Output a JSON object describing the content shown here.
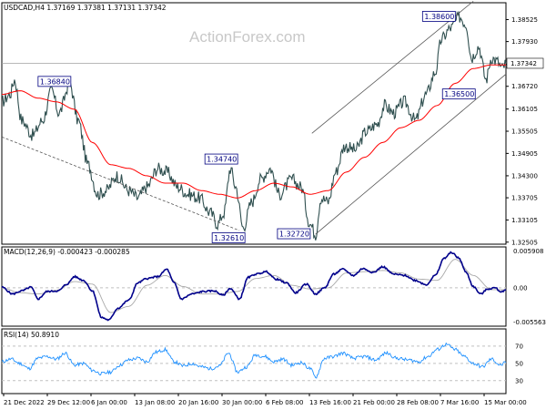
{
  "watermark": "ActionForex.com",
  "price_panel": {
    "title": "USDCAD,H4  1.37169 1.37381 1.37131 1.37342",
    "current_price": 1.37342,
    "current_price_label": "1.37342",
    "y_range": [
      1.3245,
      1.3898
    ],
    "y_ticks": [
      "1.38525",
      "1.37930",
      "1.37320",
      "1.36720",
      "1.36105",
      "1.35505",
      "1.34905",
      "1.34300",
      "1.33705",
      "1.33105",
      "1.32505"
    ],
    "annotations": [
      {
        "label": "1.36840",
        "value": 1.3684
      },
      {
        "label": "1.34740",
        "value": 1.3474
      },
      {
        "label": "1.32610",
        "value": 1.3261
      },
      {
        "label": "1.32720",
        "value": 1.3272
      },
      {
        "label": "1.38600",
        "value": 1.386
      },
      {
        "label": "1.36500",
        "value": 1.365
      }
    ]
  },
  "macd_panel": {
    "title": "MACD(12,26,9) -0.000423 -0.000285",
    "y_range": [
      -0.0062,
      0.0066
    ],
    "y_ticks": [
      "0.005908",
      "0.00",
      "-0.005563"
    ]
  },
  "rsi_panel": {
    "title": "RSI(14) 50.8910",
    "y_range": [
      15,
      90
    ],
    "y_ticks": [
      "70",
      "50",
      "30"
    ]
  },
  "x_ticks": [
    "21 Dec 2022",
    "29 Dec 12:00",
    "6 Jan 00:00",
    "13 Jan 08:00",
    "20 Jan 16:00",
    "30 Jan 00:00",
    "6 Feb 08:00",
    "13 Feb 16:00",
    "21 Feb 00:00",
    "28 Feb 08:00",
    "7 Mar 16:00",
    "15 Mar 00:00"
  ],
  "colors": {
    "price_line": "#2f4f4f",
    "moving_average": "#ff0000",
    "channel": "#555555",
    "macd_line": "#00008b",
    "signal_line": "#a9a9a9",
    "rsi_line": "#1e90ff",
    "annotation": "#000080"
  },
  "chart_data": {
    "type": "line",
    "series": [
      {
        "name": "USDCAD H4",
        "anchors": [
          [
            0,
            1.363
          ],
          [
            9,
            1.365
          ],
          [
            14,
            1.369
          ],
          [
            22,
            1.358
          ],
          [
            34,
            1.354
          ],
          [
            45,
            1.358
          ],
          [
            55,
            1.366
          ],
          [
            63,
            1.36
          ],
          [
            75,
            1.368
          ],
          [
            84,
            1.358
          ],
          [
            95,
            1.346
          ],
          [
            106,
            1.338
          ],
          [
            115,
            1.339
          ],
          [
            127,
            1.343
          ],
          [
            140,
            1.339
          ],
          [
            150,
            1.337
          ],
          [
            160,
            1.34
          ],
          [
            172,
            1.345
          ],
          [
            182,
            1.344
          ],
          [
            194,
            1.34
          ],
          [
            206,
            1.338
          ],
          [
            218,
            1.337
          ],
          [
            230,
            1.333
          ],
          [
            238,
            1.33
          ],
          [
            245,
            1.333
          ],
          [
            252,
            1.345
          ],
          [
            258,
            1.34
          ],
          [
            266,
            1.329
          ],
          [
            276,
            1.336
          ],
          [
            285,
            1.342
          ],
          [
            296,
            1.345
          ],
          [
            306,
            1.338
          ],
          [
            320,
            1.342
          ],
          [
            330,
            1.34
          ],
          [
            340,
            1.33
          ],
          [
            346,
            1.3272
          ],
          [
            352,
            1.337
          ],
          [
            360,
            1.336
          ],
          [
            368,
            1.344
          ],
          [
            378,
            1.351
          ],
          [
            390,
            1.35
          ],
          [
            402,
            1.355
          ],
          [
            414,
            1.357
          ],
          [
            422,
            1.362
          ],
          [
            432,
            1.36
          ],
          [
            444,
            1.363
          ],
          [
            456,
            1.358
          ],
          [
            468,
            1.365
          ],
          [
            478,
            1.371
          ],
          [
            485,
            1.38
          ],
          [
            495,
            1.383
          ],
          [
            505,
            1.386
          ],
          [
            512,
            1.384
          ],
          [
            518,
            1.375
          ],
          [
            526,
            1.378
          ],
          [
            534,
            1.369
          ],
          [
            540,
            1.375
          ],
          [
            546,
            1.374
          ],
          [
            552,
            1.372
          ],
          [
            556,
            1.3734
          ]
        ]
      },
      {
        "name": "MA",
        "anchors": [
          [
            0,
            1.365
          ],
          [
            20,
            1.366
          ],
          [
            40,
            1.364
          ],
          [
            60,
            1.363
          ],
          [
            80,
            1.361
          ],
          [
            100,
            1.352
          ],
          [
            120,
            1.346
          ],
          [
            140,
            1.345
          ],
          [
            160,
            1.343
          ],
          [
            180,
            1.341
          ],
          [
            200,
            1.341
          ],
          [
            220,
            1.339
          ],
          [
            240,
            1.338
          ],
          [
            260,
            1.337
          ],
          [
            280,
            1.339
          ],
          [
            300,
            1.341
          ],
          [
            320,
            1.34
          ],
          [
            340,
            1.338
          ],
          [
            360,
            1.339
          ],
          [
            380,
            1.344
          ],
          [
            400,
            1.348
          ],
          [
            420,
            1.352
          ],
          [
            440,
            1.356
          ],
          [
            460,
            1.358
          ],
          [
            480,
            1.362
          ],
          [
            500,
            1.368
          ],
          [
            520,
            1.372
          ],
          [
            540,
            1.373
          ],
          [
            556,
            1.373
          ]
        ]
      },
      {
        "name": "MACD(12,26,9)",
        "anchors": [
          [
            0,
            0.0001
          ],
          [
            12,
            -0.001
          ],
          [
            22,
            -0.0005
          ],
          [
            32,
            0.0001
          ],
          [
            40,
            -0.0018
          ],
          [
            50,
            -0.0006
          ],
          [
            62,
            -0.0005
          ],
          [
            72,
            0.0006
          ],
          [
            80,
            0.0018
          ],
          [
            90,
            0.0012
          ],
          [
            100,
            -0.0005
          ],
          [
            110,
            -0.0048
          ],
          [
            118,
            -0.0052
          ],
          [
            128,
            -0.0033
          ],
          [
            140,
            -0.002
          ],
          [
            150,
            0.0008
          ],
          [
            160,
            0.0015
          ],
          [
            172,
            0.0018
          ],
          [
            182,
            0.003
          ],
          [
            190,
            0.0008
          ],
          [
            198,
            -0.0018
          ],
          [
            210,
            -0.001
          ],
          [
            222,
            -0.0006
          ],
          [
            234,
            -0.0005
          ],
          [
            244,
            -0.0012
          ],
          [
            252,
            -0.0001
          ],
          [
            262,
            -0.0018
          ],
          [
            272,
            0.0017
          ],
          [
            280,
            0.0022
          ],
          [
            292,
            0.0026
          ],
          [
            302,
            0.0014
          ],
          [
            314,
            0.0008
          ],
          [
            324,
            -0.0008
          ],
          [
            336,
            0.0006
          ],
          [
            346,
            -0.001
          ],
          [
            356,
            0.0
          ],
          [
            366,
            0.0022
          ],
          [
            376,
            0.003
          ],
          [
            388,
            0.002
          ],
          [
            398,
            0.0031
          ],
          [
            410,
            0.0025
          ],
          [
            420,
            0.0034
          ],
          [
            432,
            0.0022
          ],
          [
            444,
            0.002
          ],
          [
            456,
            0.0012
          ],
          [
            468,
            0.0005
          ],
          [
            478,
            0.002
          ],
          [
            488,
            0.0048
          ],
          [
            496,
            0.0057
          ],
          [
            504,
            0.0048
          ],
          [
            512,
            0.0025
          ],
          [
            520,
            0.0002
          ],
          [
            528,
            -0.001
          ],
          [
            536,
            -0.0002
          ],
          [
            544,
            0.0
          ],
          [
            550,
            -0.0006
          ],
          [
            556,
            -0.0004
          ]
        ]
      },
      {
        "name": "Signal",
        "anchors": [
          [
            0,
            0.0
          ],
          [
            20,
            -0.0008
          ],
          [
            40,
            -0.001
          ],
          [
            60,
            -0.0004
          ],
          [
            80,
            0.001
          ],
          [
            100,
            0.0006
          ],
          [
            120,
            -0.004
          ],
          [
            140,
            -0.003
          ],
          [
            160,
            0.0004
          ],
          [
            180,
            0.002
          ],
          [
            200,
            0.0002
          ],
          [
            220,
            -0.001
          ],
          [
            240,
            -0.001
          ],
          [
            260,
            -0.0006
          ],
          [
            280,
            0.0015
          ],
          [
            300,
            0.002
          ],
          [
            320,
            0.0004
          ],
          [
            340,
            -0.0002
          ],
          [
            360,
            0.0
          ],
          [
            380,
            0.0024
          ],
          [
            400,
            0.0026
          ],
          [
            420,
            0.0028
          ],
          [
            440,
            0.0024
          ],
          [
            460,
            0.0014
          ],
          [
            480,
            0.0012
          ],
          [
            500,
            0.0046
          ],
          [
            520,
            0.002
          ],
          [
            540,
            -0.0003
          ],
          [
            556,
            -0.0003
          ]
        ]
      },
      {
        "name": "RSI(14)",
        "anchors": [
          [
            0,
            52
          ],
          [
            10,
            55
          ],
          [
            20,
            50
          ],
          [
            30,
            44
          ],
          [
            40,
            56
          ],
          [
            50,
            58
          ],
          [
            60,
            55
          ],
          [
            70,
            62
          ],
          [
            80,
            48
          ],
          [
            90,
            50
          ],
          [
            100,
            42
          ],
          [
            110,
            38
          ],
          [
            120,
            40
          ],
          [
            130,
            48
          ],
          [
            140,
            54
          ],
          [
            150,
            56
          ],
          [
            160,
            52
          ],
          [
            170,
            63
          ],
          [
            180,
            66
          ],
          [
            190,
            52
          ],
          [
            200,
            47
          ],
          [
            210,
            50
          ],
          [
            220,
            46
          ],
          [
            230,
            44
          ],
          [
            240,
            47
          ],
          [
            250,
            62
          ],
          [
            260,
            40
          ],
          [
            270,
            46
          ],
          [
            280,
            60
          ],
          [
            290,
            58
          ],
          [
            300,
            52
          ],
          [
            310,
            55
          ],
          [
            320,
            48
          ],
          [
            330,
            51
          ],
          [
            340,
            44
          ],
          [
            346,
            34
          ],
          [
            356,
            56
          ],
          [
            366,
            58
          ],
          [
            376,
            62
          ],
          [
            388,
            56
          ],
          [
            400,
            58
          ],
          [
            412,
            54
          ],
          [
            424,
            62
          ],
          [
            436,
            56
          ],
          [
            448,
            54
          ],
          [
            460,
            52
          ],
          [
            470,
            58
          ],
          [
            480,
            66
          ],
          [
            490,
            72
          ],
          [
            500,
            66
          ],
          [
            510,
            58
          ],
          [
            520,
            50
          ],
          [
            530,
            46
          ],
          [
            540,
            55
          ],
          [
            550,
            48
          ],
          [
            556,
            50.9
          ]
        ]
      }
    ]
  }
}
